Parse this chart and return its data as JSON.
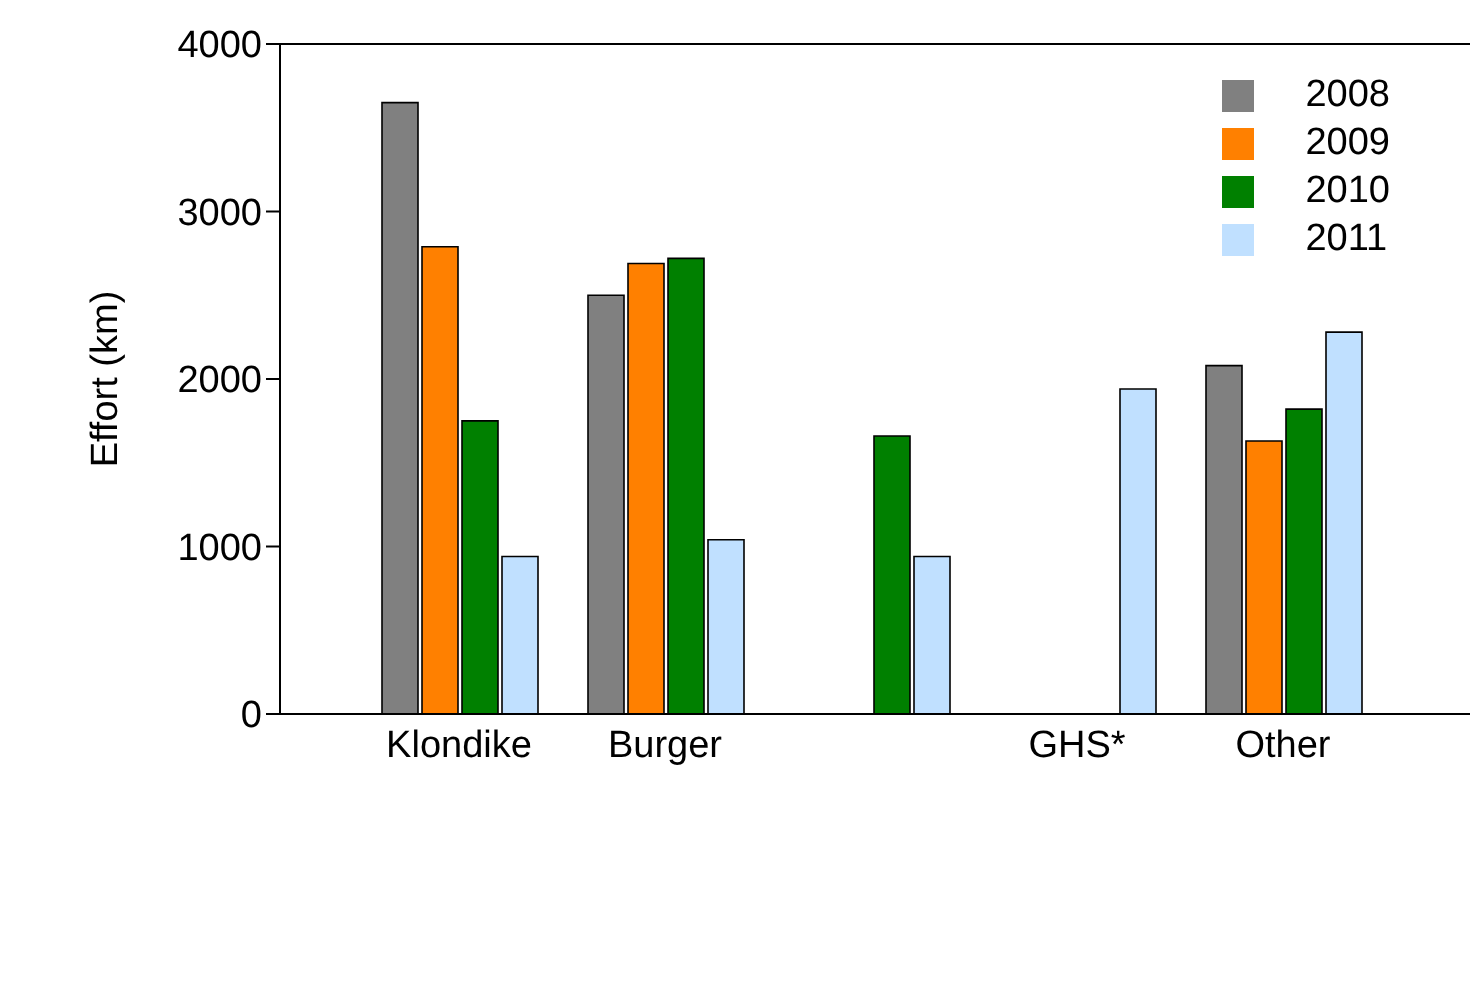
{
  "chart_data": {
    "type": "bar",
    "ylabel": "Effort (km)",
    "categories": [
      "Klondike",
      "Burger",
      null,
      "GHS*",
      "Other"
    ],
    "series": [
      {
        "name": "2008",
        "color": "#808080",
        "values": [
          3650,
          2500,
          null,
          null,
          2080
        ]
      },
      {
        "name": "2009",
        "color": "#ff8000",
        "values": [
          2790,
          2690,
          null,
          null,
          1630
        ]
      },
      {
        "name": "2010",
        "color": "#008000",
        "values": [
          1750,
          2720,
          1660,
          null,
          1820
        ]
      },
      {
        "name": "2011",
        "color": "#c0e0ff",
        "values": [
          940,
          1040,
          940,
          1940,
          2280
        ]
      }
    ],
    "ylim": [
      0,
      4000
    ],
    "yticks": [
      0,
      1000,
      2000,
      3000,
      4000
    ],
    "grid": false,
    "legend": "top right"
  }
}
